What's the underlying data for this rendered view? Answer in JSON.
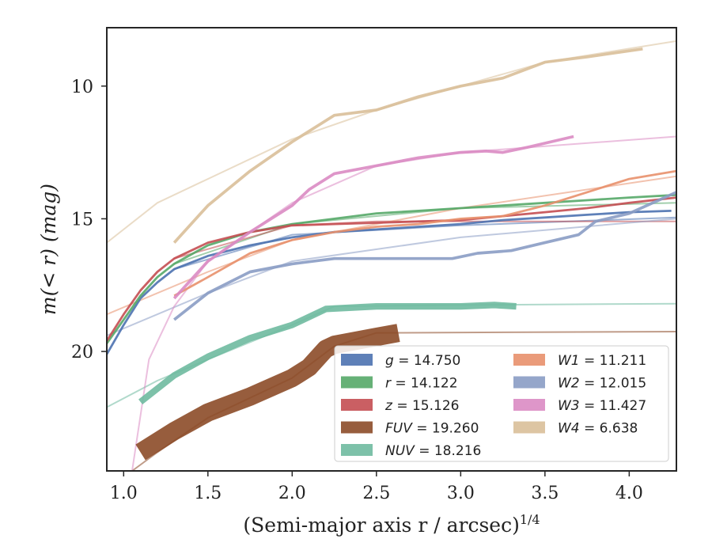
{
  "chart_data": {
    "type": "line",
    "xlabel": "(Semi-major axis r / arcsec)",
    "xlabel_sup": "1/4",
    "ylabel": "m(< r) (mag)",
    "xlim": [
      0.9,
      4.28
    ],
    "ylim": [
      24.5,
      7.8
    ],
    "y_inverted": true,
    "xticks": [
      1.0,
      1.5,
      2.0,
      2.5,
      3.0,
      3.5,
      4.0
    ],
    "xtick_labels": [
      "1.0",
      "1.5",
      "2.0",
      "2.5",
      "3.0",
      "3.5",
      "4.0"
    ],
    "yticks": [
      10,
      15,
      20
    ],
    "ytick_labels": [
      "10",
      "15",
      "20"
    ],
    "grid": false,
    "legend_position": "lower-right",
    "legend_ncol": 2,
    "series": [
      {
        "name": "g",
        "value": "14.750",
        "color": "#4c72b0",
        "band_width": 1.6,
        "data": [
          [
            0.9,
            20.1
          ],
          [
            1.0,
            19.0
          ],
          [
            1.1,
            18.0
          ],
          [
            1.2,
            17.4
          ],
          [
            1.3,
            16.9
          ],
          [
            1.5,
            16.4
          ],
          [
            1.75,
            16.0
          ],
          [
            2.0,
            15.7
          ],
          [
            2.25,
            15.5
          ],
          [
            2.5,
            15.4
          ],
          [
            2.75,
            15.3
          ],
          [
            3.0,
            15.2
          ],
          [
            3.25,
            15.05
          ],
          [
            3.5,
            14.95
          ],
          [
            3.75,
            14.85
          ],
          [
            4.0,
            14.75
          ],
          [
            4.25,
            14.7
          ]
        ],
        "model": [
          [
            1.3,
            16.9
          ],
          [
            2.0,
            15.6
          ],
          [
            3.0,
            15.25
          ],
          [
            4.28,
            14.95
          ]
        ]
      },
      {
        "name": "r",
        "value": "14.122",
        "color": "#55a868",
        "band_width": 1.6,
        "data": [
          [
            0.9,
            19.7
          ],
          [
            1.0,
            18.8
          ],
          [
            1.1,
            17.9
          ],
          [
            1.2,
            17.2
          ],
          [
            1.3,
            16.7
          ],
          [
            1.5,
            16.0
          ],
          [
            1.75,
            15.5
          ],
          [
            2.0,
            15.2
          ],
          [
            2.25,
            15.0
          ],
          [
            2.5,
            14.8
          ],
          [
            2.75,
            14.7
          ],
          [
            3.0,
            14.6
          ],
          [
            3.25,
            14.5
          ],
          [
            3.5,
            14.4
          ],
          [
            3.75,
            14.3
          ],
          [
            4.0,
            14.2
          ],
          [
            4.28,
            14.1
          ]
        ],
        "model": [
          [
            1.3,
            16.7
          ],
          [
            2.0,
            15.2
          ],
          [
            3.0,
            14.6
          ],
          [
            4.28,
            14.4
          ]
        ]
      },
      {
        "name": "z",
        "value": "15.126",
        "color": "#c44e52",
        "band_width": 1.6,
        "data": [
          [
            0.9,
            19.6
          ],
          [
            1.0,
            18.6
          ],
          [
            1.1,
            17.7
          ],
          [
            1.2,
            17.0
          ],
          [
            1.3,
            16.5
          ],
          [
            1.5,
            15.9
          ],
          [
            1.75,
            15.5
          ],
          [
            2.0,
            15.25
          ],
          [
            2.25,
            15.2
          ],
          [
            2.5,
            15.15
          ],
          [
            2.75,
            15.1
          ],
          [
            3.0,
            15.05
          ],
          [
            3.25,
            14.9
          ],
          [
            3.5,
            14.75
          ],
          [
            3.75,
            14.6
          ],
          [
            4.0,
            14.4
          ],
          [
            4.28,
            14.2
          ]
        ],
        "model": [
          [
            1.3,
            16.5
          ],
          [
            2.0,
            15.25
          ],
          [
            2.5,
            15.1
          ],
          [
            4.28,
            15.1
          ]
        ]
      },
      {
        "name": "FUV",
        "value": "19.260",
        "color": "#8c4b28",
        "band_width": 22,
        "data": [
          [
            1.1,
            23.8
          ],
          [
            1.3,
            23.0
          ],
          [
            1.5,
            22.3
          ],
          [
            1.75,
            21.7
          ],
          [
            2.0,
            21.0
          ],
          [
            2.1,
            20.6
          ],
          [
            2.2,
            19.9
          ],
          [
            2.25,
            19.75
          ],
          [
            2.5,
            19.45
          ],
          [
            2.63,
            19.3
          ]
        ],
        "model": [
          [
            1.05,
            24.5
          ],
          [
            1.2,
            23.8
          ],
          [
            1.5,
            22.5
          ],
          [
            2.0,
            21.0
          ],
          [
            2.25,
            19.8
          ],
          [
            2.5,
            19.3
          ],
          [
            4.28,
            19.25
          ]
        ]
      },
      {
        "name": "NUV",
        "value": "18.216",
        "color": "#6fbaa0",
        "band_width": 7,
        "data": [
          [
            1.1,
            21.9
          ],
          [
            1.3,
            20.9
          ],
          [
            1.5,
            20.2
          ],
          [
            1.75,
            19.5
          ],
          [
            2.0,
            19.0
          ],
          [
            2.2,
            18.4
          ],
          [
            2.5,
            18.3
          ],
          [
            2.75,
            18.3
          ],
          [
            3.0,
            18.3
          ],
          [
            3.2,
            18.25
          ],
          [
            3.33,
            18.3
          ]
        ],
        "model": [
          [
            0.9,
            22.1
          ],
          [
            1.2,
            21.1
          ],
          [
            1.5,
            20.3
          ],
          [
            2.0,
            19.0
          ],
          [
            2.25,
            18.3
          ],
          [
            3.0,
            18.25
          ],
          [
            4.28,
            18.2
          ]
        ]
      },
      {
        "name": "W1",
        "value": "11.211",
        "color": "#e8906c",
        "band_width": 1.6,
        "data": [
          [
            1.3,
            17.9
          ],
          [
            1.5,
            17.2
          ],
          [
            1.75,
            16.3
          ],
          [
            2.0,
            15.8
          ],
          [
            2.25,
            15.5
          ],
          [
            2.5,
            15.3
          ],
          [
            2.75,
            15.2
          ],
          [
            3.0,
            15.0
          ],
          [
            3.25,
            14.9
          ],
          [
            3.5,
            14.5
          ],
          [
            3.75,
            14.0
          ],
          [
            4.0,
            13.5
          ],
          [
            4.28,
            13.2
          ]
        ],
        "model": [
          [
            0.9,
            18.6
          ],
          [
            1.5,
            17.0
          ],
          [
            2.0,
            15.8
          ],
          [
            3.0,
            14.6
          ],
          [
            4.28,
            13.4
          ]
        ]
      },
      {
        "name": "W2",
        "value": "12.015",
        "color": "#8a9cc4",
        "band_width": 2.5,
        "data": [
          [
            1.3,
            18.8
          ],
          [
            1.5,
            17.8
          ],
          [
            1.75,
            17.0
          ],
          [
            2.0,
            16.7
          ],
          [
            2.25,
            16.5
          ],
          [
            2.5,
            16.5
          ],
          [
            2.75,
            16.5
          ],
          [
            2.95,
            16.5
          ],
          [
            3.1,
            16.3
          ],
          [
            3.3,
            16.2
          ],
          [
            3.5,
            15.9
          ],
          [
            3.7,
            15.6
          ],
          [
            3.8,
            15.1
          ],
          [
            4.0,
            14.8
          ],
          [
            4.28,
            14.0
          ]
        ],
        "model": [
          [
            0.9,
            19.4
          ],
          [
            1.5,
            17.8
          ],
          [
            2.0,
            16.6
          ],
          [
            3.0,
            15.7
          ],
          [
            4.28,
            15.0
          ]
        ]
      },
      {
        "name": "W3",
        "value": "11.427",
        "color": "#da8bc3",
        "band_width": 2.5,
        "data": [
          [
            1.3,
            18.0
          ],
          [
            1.5,
            16.6
          ],
          [
            1.75,
            15.5
          ],
          [
            2.0,
            14.5
          ],
          [
            2.1,
            13.9
          ],
          [
            2.25,
            13.3
          ],
          [
            2.5,
            13.0
          ],
          [
            2.75,
            12.7
          ],
          [
            3.0,
            12.5
          ],
          [
            3.15,
            12.45
          ],
          [
            3.25,
            12.5
          ],
          [
            3.4,
            12.3
          ],
          [
            3.67,
            11.9
          ]
        ],
        "model": [
          [
            1.05,
            24.5
          ],
          [
            1.15,
            20.3
          ],
          [
            1.3,
            18.3
          ],
          [
            1.5,
            16.6
          ],
          [
            2.0,
            14.4
          ],
          [
            2.5,
            13.0
          ],
          [
            3.0,
            12.5
          ],
          [
            4.28,
            11.9
          ]
        ]
      },
      {
        "name": "W4",
        "value": "6.638",
        "color": "#d9bf99",
        "band_width": 2.5,
        "data": [
          [
            1.3,
            15.9
          ],
          [
            1.5,
            14.5
          ],
          [
            1.75,
            13.2
          ],
          [
            2.0,
            12.1
          ],
          [
            2.1,
            11.7
          ],
          [
            2.25,
            11.1
          ],
          [
            2.5,
            10.9
          ],
          [
            2.75,
            10.4
          ],
          [
            3.0,
            10.0
          ],
          [
            3.25,
            9.7
          ],
          [
            3.5,
            9.1
          ],
          [
            3.75,
            8.9
          ],
          [
            4.08,
            8.6
          ]
        ],
        "model": [
          [
            0.9,
            15.9
          ],
          [
            1.2,
            14.4
          ],
          [
            1.5,
            13.5
          ],
          [
            2.0,
            12.0
          ],
          [
            2.5,
            10.9
          ],
          [
            3.0,
            10.0
          ],
          [
            3.5,
            9.1
          ],
          [
            4.28,
            8.3
          ]
        ]
      }
    ]
  }
}
